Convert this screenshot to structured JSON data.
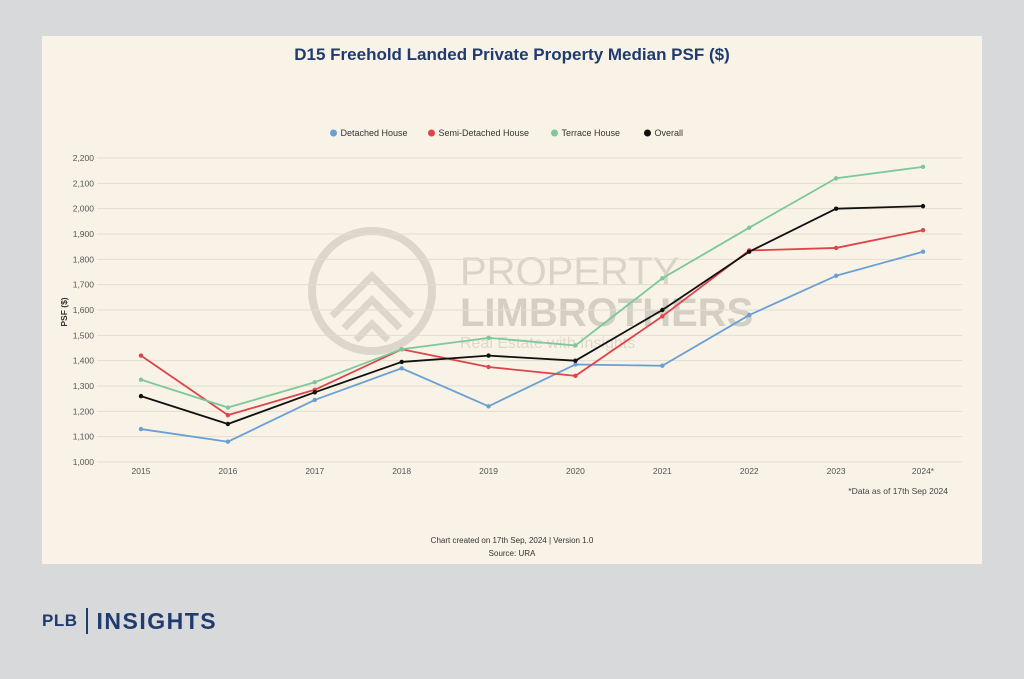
{
  "chart_data": {
    "type": "line",
    "title": "D15 Freehold Landed Private Property Median PSF ($)",
    "ylabel": "PSF ($)",
    "xlabel": "",
    "categories": [
      "2015",
      "2016",
      "2017",
      "2018",
      "2019",
      "2020",
      "2021",
      "2022",
      "2023",
      "2024*"
    ],
    "ylim": [
      1000,
      2200
    ],
    "yticks": [
      1000,
      1100,
      1200,
      1300,
      1400,
      1500,
      1600,
      1700,
      1800,
      1900,
      2000,
      2100,
      2200
    ],
    "ytick_labels": [
      "1,000",
      "1,100",
      "1,200",
      "1,300",
      "1,400",
      "1,500",
      "1,600",
      "1,700",
      "1,800",
      "1,900",
      "2,000",
      "2,100",
      "2,200"
    ],
    "grid": true,
    "legend_position": "top-center",
    "series": [
      {
        "name": "Detached House",
        "color": "#6a9fd6",
        "values": [
          1130,
          1080,
          1245,
          1370,
          1220,
          1385,
          1380,
          1580,
          1735,
          1830
        ]
      },
      {
        "name": "Semi-Detached House",
        "color": "#e0434b",
        "values": [
          1420,
          1185,
          1285,
          1445,
          1375,
          1340,
          1575,
          1835,
          1845,
          1915
        ]
      },
      {
        "name": "Terrace House",
        "color": "#7cc89b",
        "values": [
          1325,
          1215,
          1315,
          1445,
          1490,
          1460,
          1725,
          1925,
          2120,
          2165
        ]
      },
      {
        "name": "Overall",
        "color": "#111111",
        "values": [
          1260,
          1150,
          1275,
          1395,
          1420,
          1400,
          1600,
          1830,
          2000,
          2010
        ]
      }
    ],
    "annotation": "*Data as of 17th Sep 2024"
  },
  "footer": {
    "created": "Chart created on 17th Sep, 2024 | Version 1.0",
    "source": "Source: URA"
  },
  "watermark": {
    "line1": "PROPERTY",
    "line2": "LIMBROTHERS",
    "tagline": "Real Estate with Insights"
  },
  "brand": {
    "left": "PLB",
    "right": "INSIGHTS"
  }
}
